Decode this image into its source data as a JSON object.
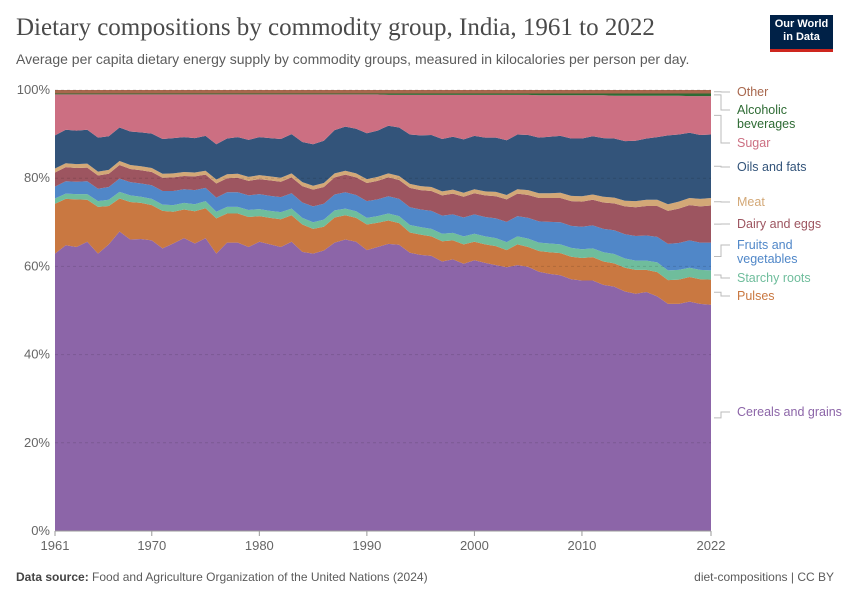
{
  "header": {
    "title": "Dietary compositions by commodity group, India, 1961 to 2022",
    "subtitle": "Average per capita dietary energy supply by commodity groups, measured in kilocalories per person per day.",
    "logo_text": "Our World in Data"
  },
  "footer": {
    "source_label": "Data source:",
    "source": "Food and Agriculture Organization of the United Nations (2024)",
    "license": "diet-compositions | CC BY"
  },
  "chart_data": {
    "type": "area",
    "stacked": true,
    "unit": "%",
    "title": "Dietary compositions by commodity group, India, 1961 to 2022",
    "xlim": [
      1961,
      2022
    ],
    "ylim": [
      0,
      100
    ],
    "x_ticks": [
      "1961",
      "1970",
      "1980",
      "1990",
      "2000",
      "2010",
      "2022"
    ],
    "y_ticks": [
      "0%",
      "20%",
      "40%",
      "60%",
      "80%",
      "100%"
    ],
    "grid": "horizontal dashed",
    "legend": "right, inline labels",
    "series": [
      {
        "name": "Cereals and grains",
        "color": "#8c65a8",
        "values": [
          62.9,
          64.8,
          64.4,
          65.6,
          62.9,
          65.0,
          67.9,
          66.1,
          66.2,
          65.9,
          64.1,
          65.2,
          66.4,
          65.2,
          66.4,
          62.9,
          65.4,
          65.4,
          64.4,
          65.6,
          65.0,
          64.4,
          65.6,
          63.3,
          62.9,
          63.6,
          65.4,
          66.1,
          65.6,
          63.7,
          64.4,
          65.1,
          64.9,
          63.1,
          62.6,
          62.4,
          61.1,
          61.6,
          60.6,
          61.4,
          60.8,
          60.3,
          59.8,
          60.3,
          59.9,
          58.8,
          58.3,
          58.0,
          57.1,
          56.8,
          56.8,
          55.8,
          55.4,
          54.3,
          53.8,
          54.2,
          53.2,
          51.5,
          51.5,
          52.0,
          51.5,
          51.3
        ]
      },
      {
        "name": "Pulses",
        "color": "#c97841",
        "values": [
          11.3,
          10.5,
          10.8,
          9.5,
          10.6,
          8.7,
          7.5,
          8.5,
          8.2,
          8.0,
          8.5,
          7.2,
          6.5,
          7.3,
          6.8,
          8.0,
          6.6,
          6.6,
          6.8,
          5.8,
          6.0,
          6.3,
          6.0,
          6.2,
          5.6,
          5.4,
          5.7,
          5.5,
          5.4,
          5.8,
          5.5,
          5.3,
          4.9,
          4.6,
          4.6,
          4.4,
          4.6,
          4.3,
          4.4,
          4.2,
          4.2,
          4.3,
          3.9,
          4.7,
          4.5,
          4.7,
          4.9,
          5.0,
          5.1,
          5.1,
          5.3,
          5.3,
          5.3,
          5.4,
          5.4,
          5.0,
          5.5,
          5.4,
          5.5,
          5.6,
          5.6,
          5.7
        ]
      },
      {
        "name": "Starchy roots",
        "color": "#6fbd9c",
        "values": [
          1.2,
          1.2,
          1.2,
          1.3,
          1.3,
          1.4,
          1.5,
          1.5,
          1.4,
          1.4,
          1.4,
          1.5,
          1.5,
          1.6,
          1.6,
          1.5,
          1.5,
          1.5,
          1.6,
          1.6,
          1.6,
          1.6,
          1.5,
          1.5,
          1.5,
          1.6,
          1.6,
          1.5,
          1.5,
          1.5,
          1.5,
          1.6,
          1.6,
          1.7,
          1.7,
          1.7,
          1.7,
          1.7,
          1.8,
          1.8,
          1.8,
          1.8,
          1.8,
          1.8,
          1.9,
          1.9,
          2.0,
          2.0,
          2.0,
          2.0,
          2.0,
          2.1,
          2.1,
          2.1,
          2.1,
          2.1,
          2.2,
          2.2,
          2.2,
          2.1,
          2.1,
          2.1
        ]
      },
      {
        "name": "Fruits and vegetables",
        "color": "#5087c8",
        "values": [
          2.7,
          2.8,
          2.8,
          2.9,
          2.8,
          2.9,
          3.0,
          3.0,
          3.0,
          3.1,
          3.1,
          3.2,
          3.1,
          3.2,
          3.0,
          3.2,
          3.3,
          3.3,
          3.3,
          3.4,
          3.4,
          3.4,
          3.5,
          3.5,
          3.6,
          3.6,
          3.6,
          3.7,
          3.7,
          3.8,
          3.8,
          3.9,
          3.9,
          4.0,
          4.0,
          4.1,
          4.1,
          4.2,
          4.3,
          4.4,
          4.4,
          4.5,
          4.6,
          4.6,
          4.7,
          4.8,
          4.9,
          5.0,
          5.0,
          5.1,
          5.2,
          5.3,
          5.4,
          5.5,
          5.6,
          5.7,
          5.8,
          6.0,
          6.1,
          6.2,
          6.2,
          6.3
        ]
      },
      {
        "name": "Dairy and eggs",
        "color": "#9d5560",
        "values": [
          3.2,
          3.2,
          3.1,
          3.1,
          3.0,
          3.0,
          3.1,
          3.0,
          3.0,
          3.0,
          3.0,
          3.1,
          3.0,
          3.1,
          3.0,
          3.2,
          3.2,
          3.3,
          3.3,
          3.4,
          3.5,
          3.5,
          3.6,
          3.7,
          3.8,
          3.8,
          3.9,
          4.0,
          4.0,
          4.1,
          4.2,
          4.3,
          4.3,
          4.4,
          4.4,
          4.5,
          4.6,
          4.7,
          4.7,
          4.8,
          4.9,
          5.0,
          5.1,
          5.1,
          5.2,
          5.3,
          5.4,
          5.5,
          5.6,
          5.7,
          5.8,
          6.0,
          6.1,
          6.3,
          6.5,
          6.7,
          7.0,
          7.5,
          7.8,
          8.0,
          8.2,
          8.4
        ]
      },
      {
        "name": "Meat",
        "color": "#d3a877",
        "values": [
          0.9,
          0.9,
          0.9,
          0.9,
          0.9,
          0.9,
          0.9,
          0.9,
          0.9,
          0.9,
          0.9,
          0.9,
          0.9,
          0.9,
          0.9,
          0.9,
          0.9,
          0.9,
          0.9,
          0.9,
          0.9,
          0.9,
          0.9,
          0.9,
          0.9,
          0.9,
          0.9,
          0.9,
          0.9,
          0.9,
          0.9,
          0.9,
          0.9,
          0.9,
          0.9,
          0.9,
          0.9,
          0.9,
          0.9,
          0.9,
          0.9,
          1.0,
          1.0,
          1.0,
          1.1,
          1.1,
          1.1,
          1.2,
          1.2,
          1.2,
          1.2,
          1.3,
          1.3,
          1.3,
          1.4,
          1.4,
          1.4,
          1.5,
          1.6,
          1.6,
          1.7,
          1.7
        ]
      },
      {
        "name": "Oils and fats",
        "color": "#33547a",
        "values": [
          7.5,
          7.6,
          7.6,
          7.7,
          7.7,
          7.6,
          7.6,
          7.6,
          7.7,
          7.8,
          7.9,
          8.0,
          7.9,
          7.8,
          7.9,
          8.0,
          8.1,
          8.3,
          8.4,
          8.6,
          8.7,
          8.8,
          8.9,
          9.1,
          9.4,
          9.6,
          9.8,
          10.0,
          10.1,
          10.4,
          10.5,
          10.8,
          11.0,
          11.2,
          11.5,
          11.8,
          11.9,
          12.0,
          12.1,
          12.1,
          12.2,
          12.3,
          12.4,
          12.4,
          12.5,
          12.6,
          12.8,
          12.9,
          13.0,
          13.1,
          13.2,
          13.3,
          13.4,
          13.5,
          13.7,
          13.9,
          14.2,
          15.6,
          15.2,
          14.8,
          14.5,
          14.4
        ]
      },
      {
        "name": "Sugar",
        "color": "#cc6f82",
        "values": [
          9.3,
          8.0,
          8.2,
          8.0,
          9.8,
          9.5,
          7.5,
          8.4,
          8.6,
          8.9,
          10.1,
          9.9,
          9.7,
          9.9,
          9.4,
          11.3,
          10.0,
          9.7,
          10.3,
          9.7,
          9.9,
          10.1,
          9.0,
          10.8,
          11.3,
          10.5,
          8.1,
          7.3,
          7.8,
          8.8,
          8.2,
          7.0,
          7.4,
          9.0,
          9.2,
          9.1,
          10.0,
          9.5,
          10.1,
          9.3,
          9.7,
          9.7,
          10.3,
          9.0,
          9.1,
          9.6,
          9.4,
          9.2,
          9.8,
          9.8,
          9.3,
          9.7,
          9.7,
          10.3,
          10.2,
          9.7,
          9.4,
          9.0,
          8.8,
          8.3,
          8.8,
          8.7
        ]
      },
      {
        "name": "Alcoholic beverages",
        "color": "#2e6b34",
        "values": [
          0.2,
          0.2,
          0.2,
          0.2,
          0.2,
          0.2,
          0.2,
          0.2,
          0.2,
          0.2,
          0.2,
          0.2,
          0.2,
          0.2,
          0.2,
          0.2,
          0.2,
          0.2,
          0.2,
          0.2,
          0.2,
          0.2,
          0.2,
          0.2,
          0.2,
          0.2,
          0.2,
          0.2,
          0.2,
          0.2,
          0.2,
          0.3,
          0.3,
          0.3,
          0.3,
          0.3,
          0.3,
          0.3,
          0.3,
          0.3,
          0.3,
          0.3,
          0.3,
          0.3,
          0.3,
          0.4,
          0.4,
          0.4,
          0.4,
          0.4,
          0.4,
          0.4,
          0.5,
          0.5,
          0.5,
          0.5,
          0.5,
          0.5,
          0.5,
          0.6,
          0.6,
          0.6
        ]
      },
      {
        "name": "Other",
        "color": "#a8674d",
        "values": [
          0.8,
          0.8,
          0.8,
          0.8,
          0.8,
          0.8,
          0.8,
          0.8,
          0.8,
          0.8,
          0.8,
          0.8,
          0.8,
          0.8,
          0.8,
          0.8,
          0.8,
          0.8,
          0.8,
          0.8,
          0.8,
          0.8,
          0.8,
          0.8,
          0.8,
          0.8,
          0.8,
          0.8,
          0.8,
          0.8,
          0.8,
          0.8,
          0.8,
          0.8,
          0.8,
          0.8,
          0.8,
          0.8,
          0.8,
          0.8,
          0.8,
          0.8,
          0.8,
          0.8,
          0.8,
          0.8,
          0.8,
          0.8,
          0.8,
          0.8,
          0.8,
          0.8,
          0.8,
          0.8,
          0.8,
          0.8,
          0.8,
          0.8,
          0.8,
          0.8,
          0.8,
          0.8
        ]
      }
    ]
  }
}
